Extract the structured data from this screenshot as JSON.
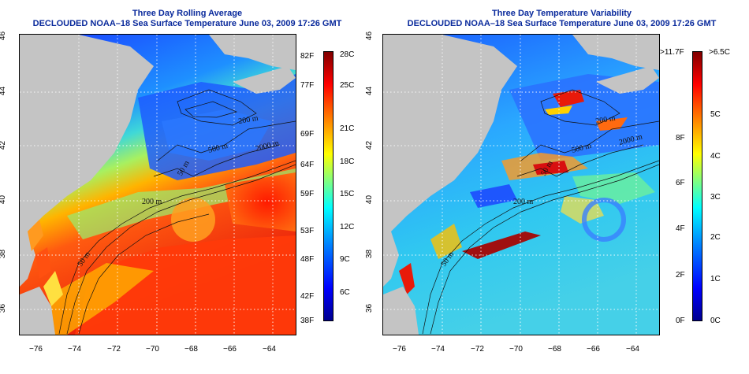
{
  "left_panel": {
    "title_line1": "Three Day Rolling Average",
    "title_line2": "DECLOUDED NOAA–18 Sea Surface Temperature June 03, 2009 17:26 GMT",
    "x_ticks": [
      "−76",
      "−74",
      "−72",
      "−70",
      "−68",
      "−66",
      "−64"
    ],
    "y_ticks": [
      "46",
      "44",
      "42",
      "40",
      "38",
      "36"
    ],
    "colorbar_left_labels": [
      "82F",
      "77F",
      "69F",
      "64F",
      "59F",
      "53F",
      "48F",
      "42F",
      "38F"
    ],
    "colorbar_right_labels": [
      "28C",
      "25C",
      "21C",
      "18C",
      "15C",
      "12C",
      "9C",
      "6C"
    ],
    "contour_labels": [
      "200 m",
      "50 m",
      "200 m",
      "2000 m",
      "500 m",
      "50 m"
    ]
  },
  "right_panel": {
    "title_line1": "Three Day Temperature Variability",
    "title_line2": "DECLOUDED NOAA–18 Sea Surface Temperature June 03, 2009 17:26 GMT",
    "x_ticks": [
      "−76",
      "−74",
      "−72",
      "−70",
      "−68",
      "−66",
      "−64"
    ],
    "y_ticks": [
      "46",
      "44",
      "42",
      "40",
      "38",
      "36"
    ],
    "colorbar_left_labels": [
      ">11.7F",
      "8F",
      "6F",
      "4F",
      "2F",
      "0F"
    ],
    "colorbar_right_labels": [
      ">6.5C",
      "5C",
      "4C",
      "3C",
      "2C",
      "1C",
      "0C"
    ],
    "contour_labels": [
      "200 m",
      "2000 m",
      "500 m",
      "50 m",
      "200 m",
      "50 m"
    ]
  },
  "colors": {
    "title": "#0a2a9c",
    "land": "#c4c4c4",
    "jet_scale": [
      "#00008f",
      "#0000ff",
      "#0080ff",
      "#00ffff",
      "#80ff80",
      "#ffff00",
      "#ff8000",
      "#ff0000",
      "#800000"
    ]
  }
}
